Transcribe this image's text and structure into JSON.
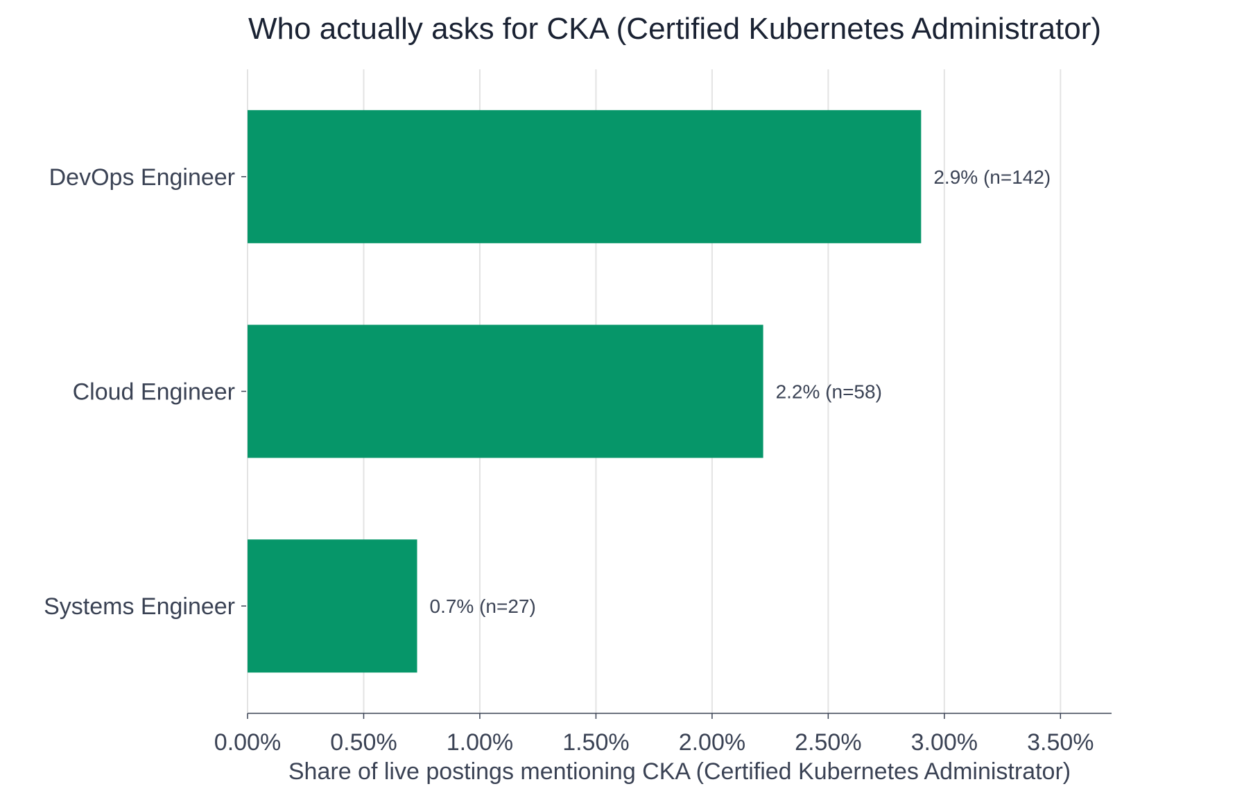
{
  "chart_data": {
    "type": "bar",
    "orientation": "horizontal",
    "title": "Who actually asks for CKA (Certified Kubernetes Administrator)",
    "xlabel": "Share of live postings mentioning CKA (Certified Kubernetes Administrator)",
    "ylabel": "",
    "xlim": [
      0,
      0.0372
    ],
    "x_ticks": [
      0,
      0.005,
      0.01,
      0.015,
      0.02,
      0.025,
      0.03,
      0.035
    ],
    "x_tick_labels": [
      "0.00%",
      "0.50%",
      "1.00%",
      "1.50%",
      "2.00%",
      "2.50%",
      "3.00%",
      "3.50%"
    ],
    "grid": "vertical",
    "legend": "none",
    "bar_color": "#069669",
    "categories": [
      "DevOps Engineer",
      "Cloud Engineer",
      "Systems Engineer"
    ],
    "values": [
      0.029,
      0.0222,
      0.0073
    ],
    "data_labels": [
      "2.9%  (n=142)",
      "2.2%  (n=58)",
      "0.7%  (n=27)"
    ]
  }
}
